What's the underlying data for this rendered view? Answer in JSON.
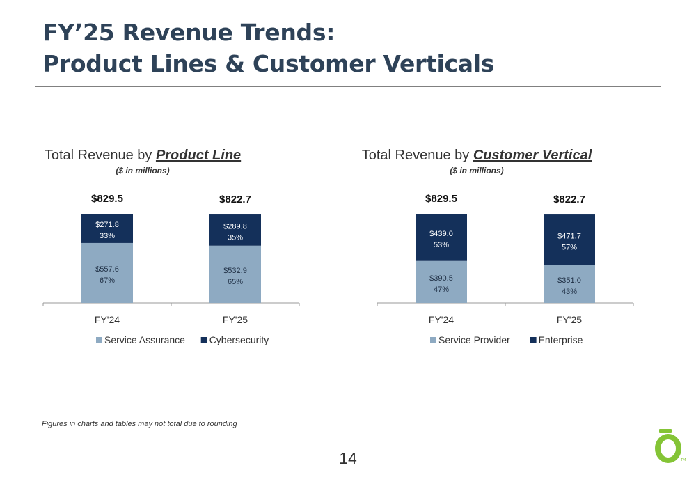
{
  "title_line1": "FY’25 Revenue Trends:",
  "title_line2": "Product Lines & Customer Verticals",
  "footnote": "Figures in charts and tables may not total due to rounding",
  "page_number": "14",
  "colors": {
    "light": "#8eaac2",
    "dark": "#14305a",
    "title": "#2e4258",
    "accent": "#84c436"
  },
  "chart_data": [
    {
      "type": "bar",
      "stacked": true,
      "title_prefix": "Total Revenue by ",
      "title_emphasis": "Product Line",
      "subtitle": "($ in millions)",
      "categories": [
        "FY'24",
        "FY'25"
      ],
      "totals": [
        "$829.5",
        "$822.7"
      ],
      "series": [
        {
          "name": "Service Assurance",
          "values": [
            557.6,
            532.9
          ],
          "labels": [
            "$557.6",
            "$532.9"
          ],
          "pct": [
            "67%",
            "65%"
          ],
          "color": "#8eaac2"
        },
        {
          "name": "Cybersecurity",
          "values": [
            271.8,
            289.8
          ],
          "labels": [
            "$271.8",
            "$289.8"
          ],
          "pct": [
            "33%",
            "35%"
          ],
          "color": "#14305a"
        }
      ],
      "legend": "bottom",
      "grid": false
    },
    {
      "type": "bar",
      "stacked": true,
      "title_prefix": "Total Revenue by ",
      "title_emphasis": "Customer Vertical",
      "subtitle": "($ in millions)",
      "categories": [
        "FY'24",
        "FY'25"
      ],
      "totals": [
        "$829.5",
        "$822.7"
      ],
      "series": [
        {
          "name": "Service Provider",
          "values": [
            390.5,
            351.0
          ],
          "labels": [
            "$390.5",
            "$351.0"
          ],
          "pct": [
            "47%",
            "43%"
          ],
          "color": "#8eaac2"
        },
        {
          "name": "Enterprise",
          "values": [
            439.0,
            471.7
          ],
          "labels": [
            "$439.0",
            "$471.7"
          ],
          "pct": [
            "53%",
            "57%"
          ],
          "color": "#14305a"
        }
      ],
      "legend": "bottom",
      "grid": false
    }
  ]
}
